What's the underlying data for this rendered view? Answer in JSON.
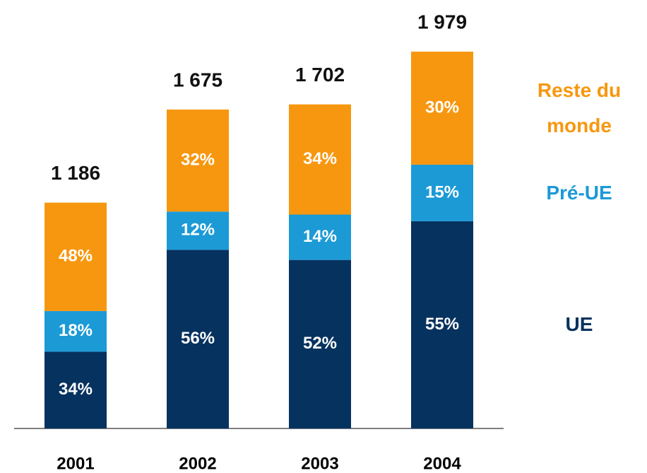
{
  "chart_data": {
    "type": "stacked_bar",
    "categories": [
      "2001",
      "2002",
      "2003",
      "2004"
    ],
    "totals": {
      "values": [
        1186,
        1675,
        1702,
        1979
      ],
      "value_labels": [
        "1 186",
        "1 675",
        "1 702",
        "1 979"
      ]
    },
    "series": [
      {
        "name": "UE",
        "color": "#06325f",
        "values": [
          34,
          56,
          52,
          55
        ],
        "value_labels": [
          "34%",
          "56%",
          "52%",
          "55%"
        ]
      },
      {
        "name": "Pré-UE",
        "color": "#1c9ad6",
        "values": [
          18,
          12,
          14,
          15
        ],
        "value_labels": [
          "18%",
          "12%",
          "14%",
          "15%"
        ]
      },
      {
        "name": "Reste du monde",
        "color": "#f7970f",
        "values": [
          48,
          32,
          34,
          30
        ],
        "value_labels": [
          "48%",
          "32%",
          "34%",
          "30%"
        ]
      }
    ]
  }
}
